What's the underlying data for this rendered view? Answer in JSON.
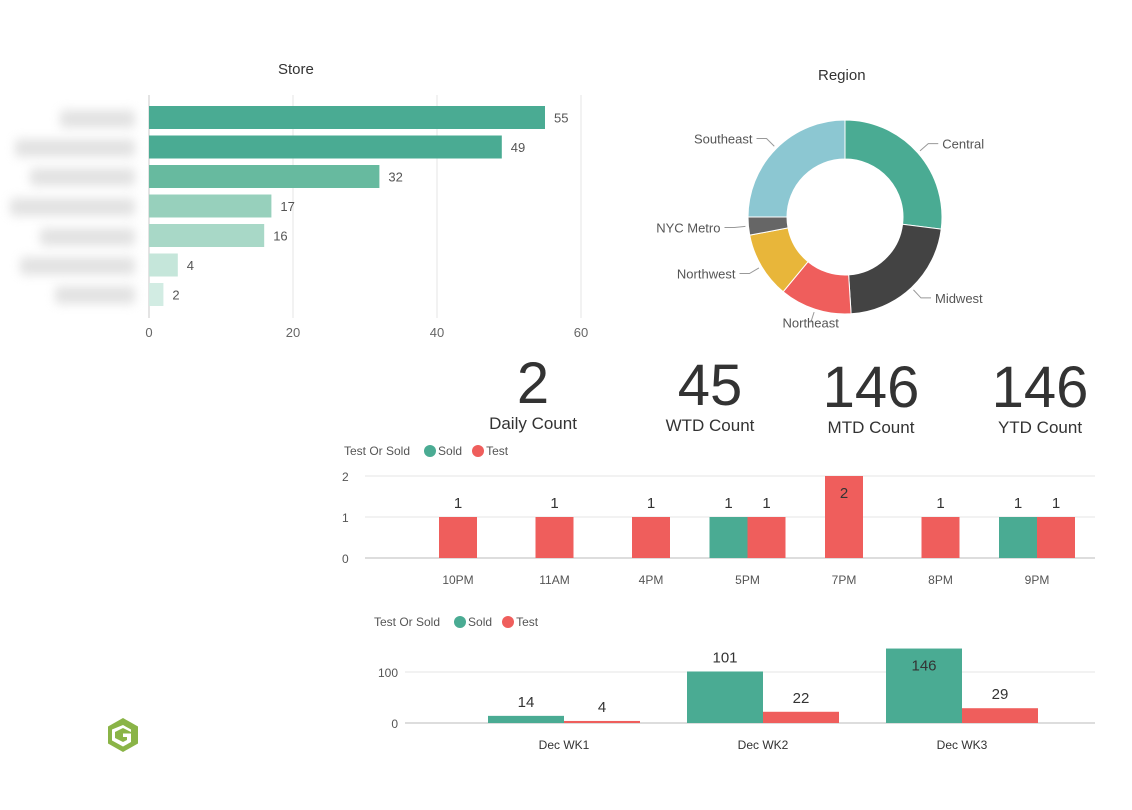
{
  "colors": {
    "sold": "#4aab93",
    "test": "#ef5e5c",
    "bar_shades": [
      "#4aab93",
      "#4aab93",
      "#67ba9f",
      "#97d0bc",
      "#a8d8c7",
      "#c5e6da",
      "#d2ecE3"
    ],
    "central": "#4aab93",
    "midwest": "#434343",
    "northeast": "#ef5e5c",
    "northwest": "#e8b63a",
    "nyc_metro": "#666666",
    "southeast": "#8cc7d2",
    "logo": "#8ab447"
  },
  "kpis": [
    {
      "value": "2",
      "label": "Daily Count"
    },
    {
      "value": "45",
      "label": "WTD Count"
    },
    {
      "value": "146",
      "label": "MTD Count"
    },
    {
      "value": "146",
      "label": "YTD Count"
    }
  ],
  "legend": {
    "title": "Test Or Sold",
    "sold": "Sold",
    "test": "Test"
  },
  "logo_icon": "g-logo-icon",
  "chart_data": [
    {
      "id": "store",
      "type": "bar",
      "orientation": "horizontal",
      "title": "Store",
      "values": [
        55,
        49,
        32,
        17,
        16,
        4,
        2
      ],
      "xlim": [
        0,
        60
      ],
      "xticks": [
        "0",
        "20",
        "40",
        "60"
      ],
      "category_labels_visible": false
    },
    {
      "id": "region",
      "type": "pie",
      "donut": true,
      "title": "Region",
      "labels": [
        "Central",
        "Midwest",
        "Northeast",
        "Northwest",
        "NYC Metro",
        "Southeast"
      ],
      "values": [
        27,
        22,
        12,
        11,
        3,
        25
      ]
    },
    {
      "id": "hourly",
      "type": "bar",
      "title": "",
      "categories": [
        "10PM",
        "11AM",
        "4PM",
        "5PM",
        "7PM",
        "8PM",
        "9PM"
      ],
      "series": [
        {
          "name": "Sold",
          "values": [
            0,
            0,
            0,
            1,
            0,
            0,
            1
          ]
        },
        {
          "name": "Test",
          "values": [
            1,
            1,
            1,
            1,
            2,
            1,
            1
          ]
        }
      ],
      "ylim": [
        0,
        2
      ],
      "yticks": [
        "0",
        "1",
        "2"
      ]
    },
    {
      "id": "weekly",
      "type": "bar",
      "title": "",
      "categories": [
        "Dec WK1",
        "Dec WK2",
        "Dec WK3"
      ],
      "series": [
        {
          "name": "Sold",
          "values": [
            14,
            101,
            146
          ]
        },
        {
          "name": "Test",
          "values": [
            4,
            22,
            29
          ]
        }
      ],
      "ylim": [
        0,
        150
      ],
      "yticks": [
        "0",
        "100"
      ]
    }
  ]
}
